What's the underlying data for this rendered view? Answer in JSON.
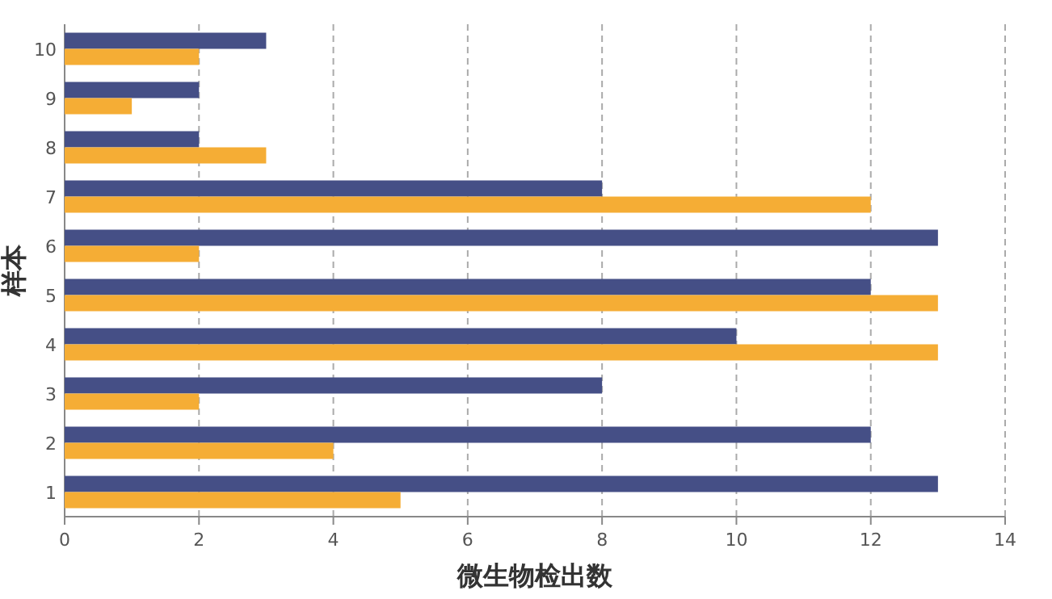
{
  "chart_data": {
    "type": "bar",
    "orientation": "horizontal",
    "xlabel": "微生物检出数",
    "ylabel": "样本",
    "categories": [
      "10",
      "9",
      "8",
      "7",
      "6",
      "5",
      "4",
      "3",
      "2",
      "1"
    ],
    "series": [
      {
        "color": "#454f86",
        "values": [
          3,
          2,
          2,
          8,
          13,
          12,
          10,
          8,
          12,
          13
        ]
      },
      {
        "color": "#f5ad35",
        "values": [
          2,
          1,
          3,
          12,
          2,
          13,
          13,
          2,
          4,
          5
        ]
      }
    ],
    "xlim": [
      0,
      14
    ],
    "xticks": [
      0,
      2,
      4,
      6,
      8,
      10,
      12,
      14
    ],
    "grid": "x"
  }
}
